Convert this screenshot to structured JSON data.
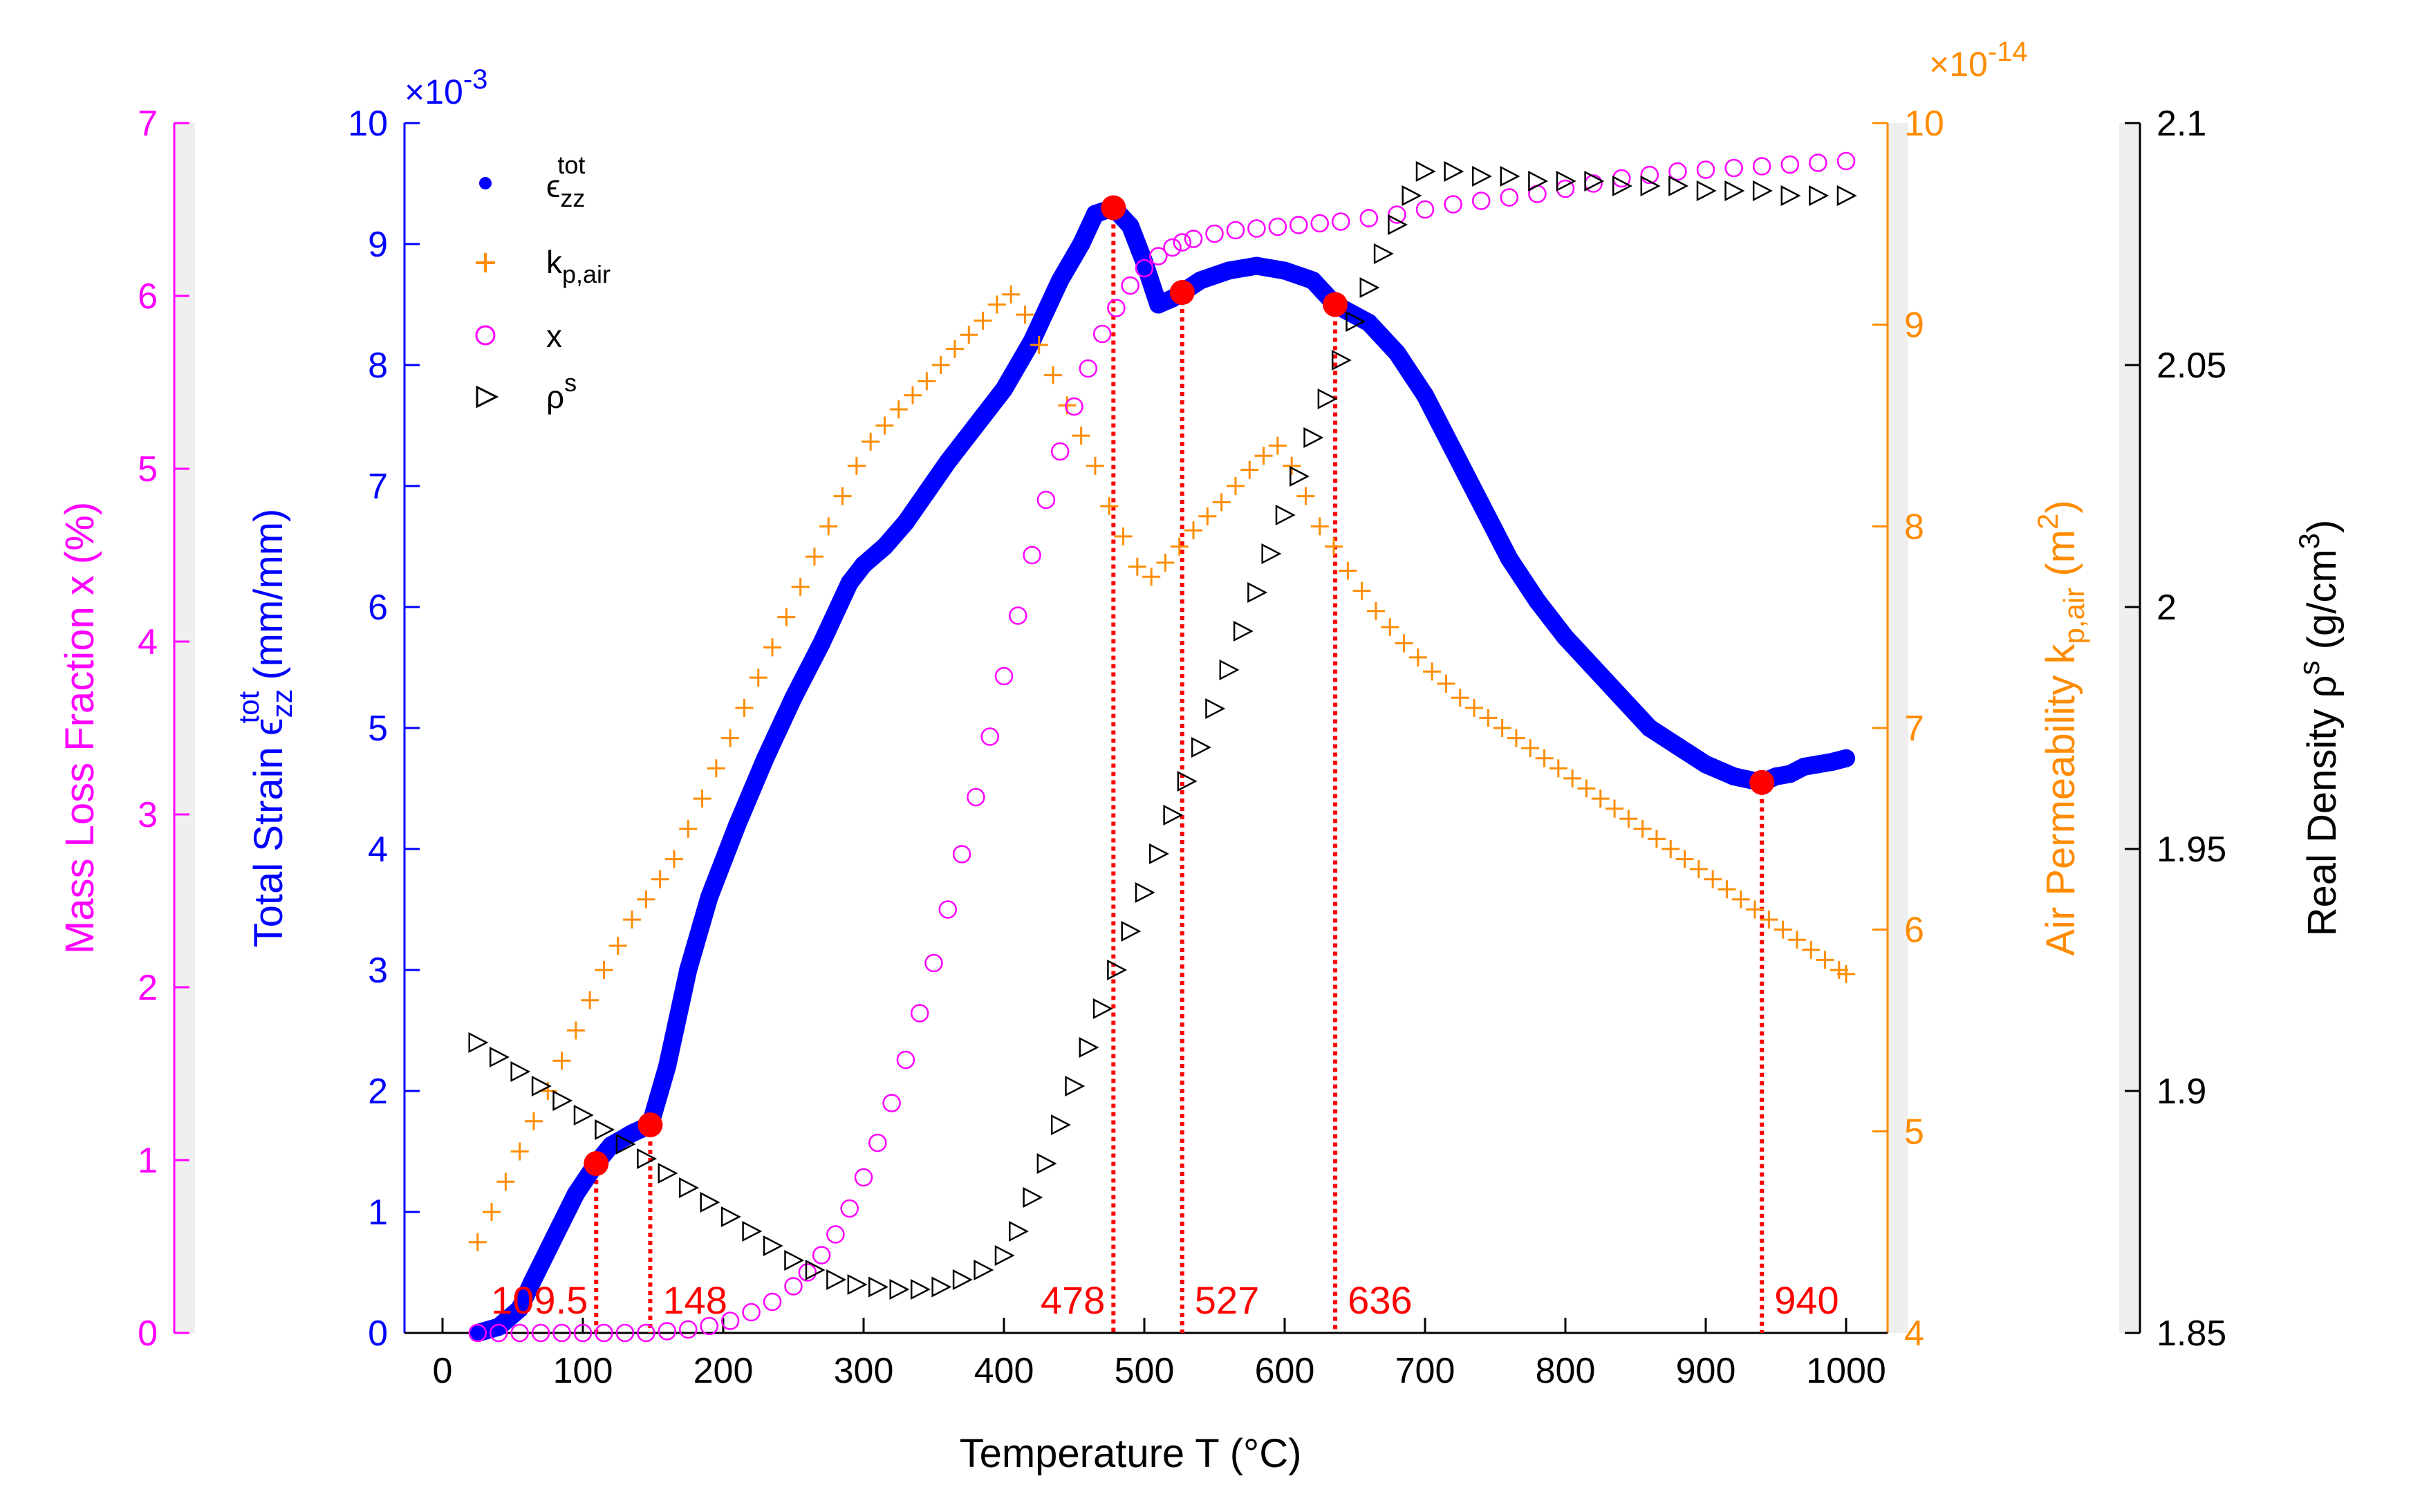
{
  "chart_data": {
    "type": "scatter",
    "xlabel": "Temperature T (°C)",
    "xlim": [
      0,
      1000
    ],
    "xticks": [
      0,
      100,
      200,
      300,
      400,
      500,
      600,
      700,
      800,
      900,
      1000
    ],
    "axes": {
      "mass_loss": {
        "label": "Mass Loss Fraction x (%)",
        "color": "#ff00ff",
        "ylim": [
          0,
          7
        ],
        "ticks": [
          0,
          1,
          2,
          3,
          4,
          5,
          6,
          7
        ]
      },
      "strain": {
        "label": "Total Strain ε_zz^tot (mm/mm)",
        "label_parts": {
          "main": "Total Strain ",
          "symbol": "ϵ",
          "sub": "zz",
          "sup": "tot",
          "unit": " (mm/mm)"
        },
        "color": "#0000ff",
        "ylim": [
          0,
          10
        ],
        "ticks": [
          0,
          1,
          2,
          3,
          4,
          5,
          6,
          7,
          8,
          9,
          10
        ],
        "multiplier": "×10-3",
        "multiplier_parts": {
          "x": "×",
          "base": "10",
          "exp": "-3"
        }
      },
      "permeability": {
        "label": "Air Permeability k_p,air (m^2)",
        "label_parts": {
          "main": "Air Permeability k",
          "sub": "p,air",
          "unit_open": " (m",
          "sup": "2",
          "unit_close": ")"
        },
        "color": "#ff8c00",
        "ylim": [
          4,
          10
        ],
        "ticks": [
          4,
          5,
          6,
          7,
          8,
          9,
          10
        ],
        "multiplier": "×10-14",
        "multiplier_parts": {
          "x": "×",
          "base": "10",
          "exp": "-14"
        }
      },
      "density": {
        "label": "Real Density ρ^s (g/cm^3)",
        "label_parts": {
          "main": "Real Density ",
          "symbol": "ρ",
          "sup": "s",
          "unit_open": " (g/cm",
          "sup2": "3",
          "unit_close": ")"
        },
        "color": "#000000",
        "ylim": [
          1.85,
          2.1
        ],
        "ticks": [
          "1.85",
          "1.9",
          "1.95",
          "2",
          "2.05",
          "2.1"
        ]
      }
    },
    "legend": {
      "placement": "top-left",
      "entries": [
        {
          "label": "ϵ_zz^tot",
          "main": "ϵ",
          "sub": "zz",
          "sup": "tot",
          "marker": "dot",
          "color": "#0000ff"
        },
        {
          "label": "k_p,air",
          "main": "k",
          "sub": "p,air",
          "sup": "",
          "marker": "plus",
          "color": "#ff8c00"
        },
        {
          "label": "x",
          "main": "x",
          "sub": "",
          "sup": "",
          "marker": "circle",
          "color": "#ff00ff"
        },
        {
          "label": "ρ^s",
          "main": "ρ",
          "sub": "",
          "sup": "s",
          "marker": "triangle-right",
          "color": "#000000"
        }
      ]
    },
    "series": [
      {
        "name": "Total strain ε_zz^tot (×10^-3 mm/mm)",
        "axis": "strain",
        "marker": "dot",
        "color": "#0000ff",
        "x": [
          25,
          40,
          55,
          65,
          80,
          95,
          109.5,
          120,
          135,
          148,
          160,
          175,
          190,
          210,
          230,
          250,
          270,
          290,
          300,
          315,
          330,
          345,
          360,
          380,
          400,
          420,
          440,
          455,
          465,
          478,
          490,
          500,
          510,
          520,
          527,
          540,
          560,
          580,
          600,
          620,
          636,
          660,
          680,
          700,
          720,
          740,
          760,
          780,
          800,
          820,
          840,
          860,
          880,
          900,
          920,
          940,
          950,
          960,
          970,
          980,
          990,
          1000
        ],
        "y": [
          0.0,
          0.05,
          0.2,
          0.45,
          0.8,
          1.15,
          1.4,
          1.55,
          1.65,
          1.72,
          2.2,
          3.0,
          3.6,
          4.2,
          4.75,
          5.25,
          5.7,
          6.2,
          6.35,
          6.5,
          6.7,
          6.95,
          7.2,
          7.5,
          7.8,
          8.2,
          8.7,
          9.0,
          9.25,
          9.3,
          9.15,
          8.85,
          8.5,
          8.55,
          8.6,
          8.7,
          8.78,
          8.82,
          8.78,
          8.7,
          8.5,
          8.35,
          8.1,
          7.75,
          7.3,
          6.85,
          6.4,
          6.05,
          5.75,
          5.5,
          5.25,
          5.0,
          4.85,
          4.7,
          4.6,
          4.55,
          4.6,
          4.62,
          4.68,
          4.7,
          4.72,
          4.75
        ]
      },
      {
        "name": "Air permeability k_p,air (×10^-14 m^2)",
        "axis": "permeability",
        "marker": "plus",
        "color": "#ff8c00",
        "x": [
          25,
          35,
          45,
          55,
          65,
          75,
          85,
          95,
          105,
          115,
          125,
          135,
          145,
          155,
          165,
          175,
          185,
          195,
          205,
          215,
          225,
          235,
          245,
          255,
          265,
          275,
          285,
          295,
          305,
          315,
          325,
          335,
          345,
          355,
          365,
          375,
          385,
          395,
          405,
          415,
          425,
          435,
          445,
          455,
          465,
          475,
          485,
          495,
          505,
          515,
          525,
          535,
          545,
          555,
          565,
          575,
          585,
          595,
          605,
          615,
          625,
          635,
          645,
          655,
          665,
          675,
          685,
          695,
          705,
          715,
          725,
          735,
          745,
          755,
          765,
          775,
          785,
          795,
          805,
          815,
          825,
          835,
          845,
          855,
          865,
          875,
          885,
          895,
          905,
          915,
          925,
          935,
          945,
          955,
          965,
          975,
          985,
          995,
          1000
        ],
        "y": [
          4.45,
          4.6,
          4.75,
          4.9,
          5.05,
          5.2,
          5.35,
          5.5,
          5.65,
          5.8,
          5.92,
          6.05,
          6.15,
          6.25,
          6.35,
          6.5,
          6.65,
          6.8,
          6.95,
          7.1,
          7.25,
          7.4,
          7.55,
          7.7,
          7.85,
          8.0,
          8.15,
          8.3,
          8.42,
          8.5,
          8.58,
          8.65,
          8.72,
          8.8,
          8.88,
          8.95,
          9.02,
          9.1,
          9.15,
          9.05,
          8.9,
          8.75,
          8.6,
          8.45,
          8.3,
          8.1,
          7.95,
          7.8,
          7.75,
          7.82,
          7.9,
          7.98,
          8.05,
          8.12,
          8.2,
          8.28,
          8.35,
          8.4,
          8.3,
          8.15,
          8.0,
          7.9,
          7.78,
          7.68,
          7.58,
          7.5,
          7.42,
          7.35,
          7.28,
          7.22,
          7.15,
          7.1,
          7.05,
          7.0,
          6.95,
          6.9,
          6.85,
          6.8,
          6.75,
          6.7,
          6.65,
          6.6,
          6.55,
          6.5,
          6.45,
          6.4,
          6.35,
          6.3,
          6.25,
          6.2,
          6.15,
          6.1,
          6.05,
          6.0,
          5.95,
          5.9,
          5.85,
          5.8,
          5.78
        ]
      },
      {
        "name": "Mass loss fraction x (%)",
        "axis": "mass_loss",
        "marker": "circle",
        "color": "#ff00ff",
        "x": [
          25,
          40,
          55,
          70,
          85,
          100,
          115,
          130,
          145,
          160,
          175,
          190,
          205,
          220,
          235,
          250,
          260,
          270,
          280,
          290,
          300,
          310,
          320,
          330,
          340,
          350,
          360,
          370,
          380,
          390,
          400,
          410,
          420,
          430,
          440,
          450,
          460,
          470,
          480,
          490,
          500,
          510,
          520,
          527,
          535,
          550,
          565,
          580,
          595,
          610,
          625,
          640,
          660,
          680,
          700,
          720,
          740,
          760,
          780,
          800,
          820,
          840,
          860,
          880,
          900,
          920,
          940,
          960,
          980,
          1000
        ],
        "y": [
          0.0,
          0.0,
          0.0,
          0.0,
          0.0,
          0.0,
          0.0,
          0.0,
          0.0,
          0.01,
          0.02,
          0.04,
          0.07,
          0.12,
          0.18,
          0.27,
          0.35,
          0.45,
          0.57,
          0.72,
          0.9,
          1.1,
          1.33,
          1.58,
          1.85,
          2.14,
          2.45,
          2.77,
          3.1,
          3.45,
          3.8,
          4.15,
          4.5,
          4.82,
          5.1,
          5.36,
          5.58,
          5.78,
          5.93,
          6.06,
          6.16,
          6.23,
          6.28,
          6.31,
          6.33,
          6.36,
          6.38,
          6.39,
          6.4,
          6.41,
          6.42,
          6.43,
          6.45,
          6.47,
          6.5,
          6.53,
          6.55,
          6.57,
          6.59,
          6.62,
          6.65,
          6.68,
          6.7,
          6.72,
          6.73,
          6.74,
          6.75,
          6.76,
          6.77,
          6.78
        ]
      },
      {
        "name": "Real density ρ^s (g/cm^3)",
        "axis": "density",
        "marker": "triangle-right",
        "color": "#000000",
        "x": [
          25,
          40,
          55,
          70,
          85,
          100,
          115,
          130,
          145,
          160,
          175,
          190,
          205,
          220,
          235,
          250,
          265,
          280,
          295,
          310,
          325,
          340,
          355,
          370,
          385,
          400,
          410,
          420,
          430,
          440,
          450,
          460,
          470,
          480,
          490,
          500,
          510,
          520,
          530,
          540,
          550,
          560,
          570,
          580,
          590,
          600,
          610,
          620,
          630,
          640,
          650,
          660,
          670,
          680,
          690,
          700,
          720,
          740,
          760,
          780,
          800,
          820,
          840,
          860,
          880,
          900,
          920,
          940,
          960,
          980,
          1000
        ],
        "y": [
          1.91,
          1.907,
          1.904,
          1.901,
          1.898,
          1.895,
          1.892,
          1.889,
          1.886,
          1.883,
          1.88,
          1.877,
          1.874,
          1.871,
          1.868,
          1.865,
          1.863,
          1.861,
          1.86,
          1.8595,
          1.859,
          1.859,
          1.8595,
          1.861,
          1.863,
          1.866,
          1.871,
          1.878,
          1.885,
          1.893,
          1.901,
          1.909,
          1.917,
          1.925,
          1.933,
          1.941,
          1.949,
          1.957,
          1.964,
          1.971,
          1.979,
          1.987,
          1.995,
          2.003,
          2.011,
          2.019,
          2.027,
          2.035,
          2.043,
          2.051,
          2.059,
          2.066,
          2.073,
          2.079,
          2.085,
          2.09,
          2.09,
          2.089,
          2.089,
          2.088,
          2.088,
          2.088,
          2.087,
          2.087,
          2.087,
          2.086,
          2.086,
          2.086,
          2.085,
          2.085,
          2.085
        ]
      }
    ],
    "markers": {
      "color": "#ff0000",
      "points": [
        {
          "x": 109.5,
          "y": 1.4,
          "label": "109.5"
        },
        {
          "x": 148,
          "y": 1.72,
          "label": "148"
        },
        {
          "x": 478,
          "y": 9.3,
          "label": "478"
        },
        {
          "x": 527,
          "y": 8.6,
          "label": "527"
        },
        {
          "x": 636,
          "y": 8.5,
          "label": "636"
        },
        {
          "x": 940,
          "y": 4.55,
          "label": "940"
        }
      ]
    }
  }
}
